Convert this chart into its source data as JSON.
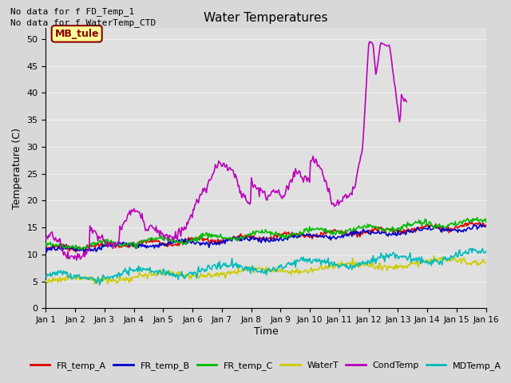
{
  "title": "Water Temperatures",
  "xlabel": "Time",
  "ylabel": "Temperature (C)",
  "ylim": [
    0,
    52
  ],
  "xlim": [
    0,
    15
  ],
  "xtick_labels": [
    "Jan 1",
    "Jan 2",
    "Jan 3",
    "Jan 4",
    "Jan 5",
    "Jan 6",
    "Jan 7",
    "Jan 8",
    "Jan 9",
    "Jan 10",
    "Jan 11",
    "Jan 12",
    "Jan 13",
    "Jan 14",
    "Jan 15",
    "Jan 16"
  ],
  "annotation_lines": [
    "No data for f FD_Temp_1",
    "No data for f WaterTemp_CTD"
  ],
  "box_label": "MB_tule",
  "background_color": "#d8d8d8",
  "axes_bg": "#e0e0e0",
  "grid_color": "#f0f0f0",
  "series": {
    "FR_temp_A": {
      "color": "#dd0000",
      "linewidth": 1.2
    },
    "FR_temp_B": {
      "color": "#0000cc",
      "linewidth": 1.2
    },
    "FR_temp_C": {
      "color": "#00bb00",
      "linewidth": 1.2
    },
    "WaterT": {
      "color": "#cccc00",
      "linewidth": 1.2
    },
    "CondTemp": {
      "color": "#bb00bb",
      "linewidth": 1.2
    },
    "MDTemp_A": {
      "color": "#00bbbb",
      "linewidth": 1.2
    }
  },
  "n_points": 500
}
